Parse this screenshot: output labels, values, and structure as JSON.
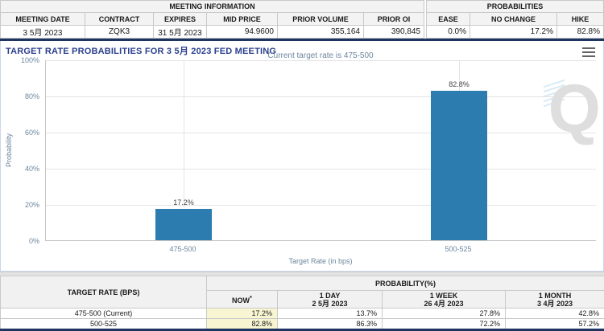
{
  "meeting_information": {
    "title": "MEETING INFORMATION",
    "columns": [
      "MEETING DATE",
      "CONTRACT",
      "EXPIRES",
      "MID PRICE",
      "PRIOR VOLUME",
      "PRIOR OI"
    ],
    "values": [
      "3 5月 2023",
      "ZQK3",
      "31 5月 2023",
      "94.9600",
      "355,164",
      "390,845"
    ]
  },
  "probabilities_panel": {
    "title": "PROBABILITIES",
    "columns": [
      "EASE",
      "NO CHANGE",
      "HIKE"
    ],
    "values": [
      "0.0%",
      "17.2%",
      "82.8%"
    ]
  },
  "chart": {
    "title": "TARGET RATE PROBABILITIES FOR 3 5月 2023 FED MEETING",
    "subtitle": "Current target rate is 475-500",
    "y_axis_title": "Probability",
    "x_axis_title": "Target Rate (in bps)",
    "y_ticks": [
      "100%",
      "80%",
      "60%",
      "40%",
      "20%",
      "0%"
    ],
    "watermark_letter": "Q"
  },
  "chart_data": {
    "type": "bar",
    "title": "TARGET RATE PROBABILITIES FOR 3 5月 2023 FED MEETING",
    "subtitle": "Current target rate is 475-500",
    "categories": [
      "475-500",
      "500-525"
    ],
    "values": [
      17.2,
      82.8
    ],
    "data_labels": [
      "17.2%",
      "82.8%"
    ],
    "xlabel": "Target Rate (in bps)",
    "ylabel": "Probability",
    "ylim": [
      0,
      100
    ],
    "grid": "horizontal",
    "bar_color": "#2c7cb0"
  },
  "history_table": {
    "rate_header": "TARGET RATE (BPS)",
    "group_header": "PROBABILITY(%)",
    "col_now": "NOW",
    "col_now_mark": "*",
    "col_day_label": "1 DAY",
    "col_day_date": "2 5月 2023",
    "col_week_label": "1 WEEK",
    "col_week_date": "26 4月 2023",
    "col_month_label": "1 MONTH",
    "col_month_date": "3 4月 2023",
    "rows": [
      {
        "rate": "475-500 (Current)",
        "now": "17.2%",
        "day": "13.7%",
        "week": "27.8%",
        "month": "42.8%"
      },
      {
        "rate": "500-525",
        "now": "82.8%",
        "day": "86.3%",
        "week": "72.2%",
        "month": "57.2%"
      }
    ]
  },
  "colors": {
    "accent_navy": "#1e3461",
    "title_blue": "#2a3f8d",
    "bar_blue": "#2c7cb0",
    "highlight_yellow": "#f8f6d2"
  }
}
